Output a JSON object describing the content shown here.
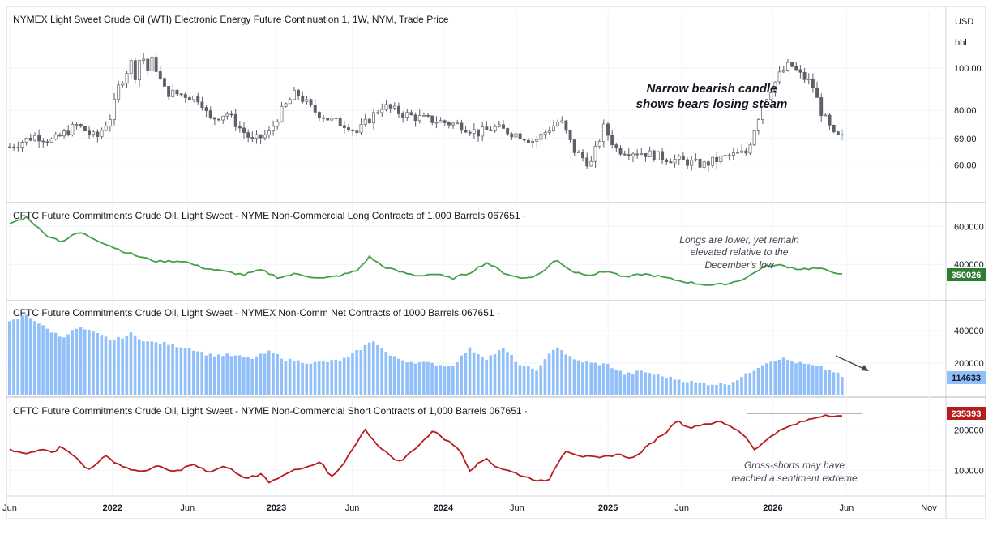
{
  "chart_data": [
    {
      "type": "candlestick",
      "title": "NYMEX Light Sweet Crude Oil (WTI) Electronic Energy Future Continuation 1, 1W, NYM, Trade Price",
      "y_unit": "USD",
      "y_unit2": "bbl",
      "y_scale": "log",
      "y_ticks": [
        60,
        69,
        80,
        100
      ],
      "y_tick_labels": [
        "60.00",
        "69.00",
        "80.00",
        "100.00"
      ],
      "ylim": [
        50,
        135
      ],
      "last_value": 69.0,
      "annotation": "Narrow bearish candle shows bears losing steam",
      "annotation_lines": [
        "Narrow bearish candle",
        "shows bears losing steam"
      ],
      "close_anchors": [
        [
          0,
          66
        ],
        [
          0.06,
          70
        ],
        [
          0.1,
          68
        ],
        [
          0.155,
          74
        ],
        [
          0.2,
          69
        ],
        [
          0.235,
          78
        ],
        [
          0.25,
          90
        ],
        [
          0.28,
          103
        ],
        [
          0.29,
          96
        ],
        [
          0.305,
          110
        ],
        [
          0.315,
          97
        ],
        [
          0.33,
          105
        ],
        [
          0.345,
          95
        ],
        [
          0.36,
          88
        ],
        [
          0.4,
          87
        ],
        [
          0.44,
          85
        ],
        [
          0.46,
          76
        ],
        [
          0.5,
          79
        ],
        [
          0.53,
          73
        ],
        [
          0.56,
          68
        ],
        [
          0.6,
          71
        ],
        [
          0.62,
          78
        ],
        [
          0.66,
          88
        ],
        [
          0.7,
          80
        ],
        [
          0.74,
          76
        ],
        [
          0.78,
          74
        ],
        [
          0.8,
          71
        ],
        [
          0.86,
          82
        ],
        [
          0.9,
          79
        ],
        [
          0.94,
          77
        ],
        [
          1.04,
          74
        ],
        [
          1.08,
          71
        ],
        [
          1.12,
          73
        ],
        [
          1.18,
          70
        ],
        [
          1.21,
          68
        ],
        [
          1.24,
          72
        ],
        [
          1.27,
          76
        ],
        [
          1.3,
          65
        ],
        [
          1.34,
          60
        ],
        [
          1.37,
          73
        ],
        [
          1.4,
          65
        ],
        [
          1.46,
          64
        ],
        [
          1.52,
          62
        ],
        [
          1.56,
          61
        ],
        [
          1.6,
          60
        ],
        [
          1.66,
          63
        ],
        [
          1.7,
          64
        ],
        [
          1.74,
          84
        ],
        [
          1.78,
          98
        ],
        [
          1.8,
          102
        ],
        [
          1.82,
          97
        ],
        [
          1.85,
          92
        ],
        [
          1.87,
          80
        ],
        [
          1.9,
          70
        ],
        [
          1.92,
          69
        ]
      ]
    },
    {
      "type": "line",
      "title": "CFTC Future Commitments Crude Oil, Light Sweet - NYME Non-Commercial Long Contracts of 1,000 Barrels 067651 ·",
      "y_ticks": [
        400000,
        600000
      ],
      "y_tick_labels": [
        "400000",
        "600000"
      ],
      "ylim": [
        230000,
        700000
      ],
      "last_value": 350026,
      "last_label": "350026",
      "color": "#43a047",
      "annotation": "Longs are lower, yet remain elevated relative to the December's low",
      "annotation_lines": [
        "Longs are lower, yet remain",
        "elevated relative to the",
        "December's low"
      ],
      "anchors": [
        [
          0,
          615000
        ],
        [
          0.04,
          650000
        ],
        [
          0.08,
          560000
        ],
        [
          0.12,
          520000
        ],
        [
          0.16,
          570000
        ],
        [
          0.2,
          530000
        ],
        [
          0.26,
          470000
        ],
        [
          0.3,
          440000
        ],
        [
          0.34,
          415000
        ],
        [
          0.4,
          418000
        ],
        [
          0.44,
          385000
        ],
        [
          0.5,
          360000
        ],
        [
          0.54,
          345000
        ],
        [
          0.58,
          370000
        ],
        [
          0.62,
          330000
        ],
        [
          0.66,
          350000
        ],
        [
          0.72,
          325000
        ],
        [
          0.76,
          340000
        ],
        [
          0.8,
          365000
        ],
        [
          0.83,
          440000
        ],
        [
          0.86,
          390000
        ],
        [
          0.9,
          360000
        ],
        [
          0.94,
          340000
        ],
        [
          0.98,
          350000
        ],
        [
          1.02,
          325000
        ],
        [
          1.06,
          355000
        ],
        [
          1.1,
          410000
        ],
        [
          1.14,
          355000
        ],
        [
          1.18,
          325000
        ],
        [
          1.22,
          345000
        ],
        [
          1.26,
          425000
        ],
        [
          1.3,
          360000
        ],
        [
          1.34,
          345000
        ],
        [
          1.38,
          365000
        ],
        [
          1.42,
          330000
        ],
        [
          1.46,
          350000
        ],
        [
          1.5,
          335000
        ],
        [
          1.54,
          315000
        ],
        [
          1.58,
          300000
        ],
        [
          1.62,
          290000
        ],
        [
          1.66,
          300000
        ],
        [
          1.7,
          330000
        ],
        [
          1.74,
          390000
        ],
        [
          1.78,
          395000
        ],
        [
          1.82,
          375000
        ],
        [
          1.86,
          380000
        ],
        [
          1.9,
          360000
        ],
        [
          1.92,
          350026
        ]
      ]
    },
    {
      "type": "bar",
      "title": "CFTC Future Commitments Crude Oil, Light Sweet - NYMEX Non-Comm Net Contracts of 1000 Barrels 067651 ·",
      "y_ticks": [
        200000,
        400000
      ],
      "y_tick_labels": [
        "200000",
        "400000"
      ],
      "ylim": [
        0,
        540000
      ],
      "last_value": 114633,
      "last_label": "114633",
      "color": "#90bff9",
      "anchors": [
        [
          0,
          450000
        ],
        [
          0.04,
          500000
        ],
        [
          0.08,
          420000
        ],
        [
          0.12,
          360000
        ],
        [
          0.16,
          420000
        ],
        [
          0.2,
          380000
        ],
        [
          0.24,
          340000
        ],
        [
          0.28,
          380000
        ],
        [
          0.32,
          330000
        ],
        [
          0.36,
          320000
        ],
        [
          0.42,
          290000
        ],
        [
          0.46,
          250000
        ],
        [
          0.5,
          250000
        ],
        [
          0.56,
          230000
        ],
        [
          0.6,
          270000
        ],
        [
          0.64,
          220000
        ],
        [
          0.7,
          200000
        ],
        [
          0.74,
          210000
        ],
        [
          0.78,
          230000
        ],
        [
          0.8,
          270000
        ],
        [
          0.84,
          340000
        ],
        [
          0.88,
          240000
        ],
        [
          0.92,
          210000
        ],
        [
          0.96,
          200000
        ],
        [
          1.02,
          180000
        ],
        [
          1.06,
          290000
        ],
        [
          1.1,
          230000
        ],
        [
          1.14,
          290000
        ],
        [
          1.18,
          180000
        ],
        [
          1.22,
          160000
        ],
        [
          1.26,
          310000
        ],
        [
          1.3,
          220000
        ],
        [
          1.34,
          200000
        ],
        [
          1.38,
          190000
        ],
        [
          1.42,
          130000
        ],
        [
          1.46,
          150000
        ],
        [
          1.5,
          120000
        ],
        [
          1.54,
          100000
        ],
        [
          1.58,
          80000
        ],
        [
          1.62,
          70000
        ],
        [
          1.66,
          75000
        ],
        [
          1.7,
          130000
        ],
        [
          1.74,
          200000
        ],
        [
          1.78,
          230000
        ],
        [
          1.82,
          200000
        ],
        [
          1.86,
          180000
        ],
        [
          1.9,
          150000
        ],
        [
          1.92,
          114633
        ]
      ]
    },
    {
      "type": "line",
      "title": "CFTC Future Commitments Crude Oil, Light Sweet - NYME Non-Commercial Short Contracts of 1,000 Barrels 067651 ·",
      "y_ticks": [
        100000,
        200000
      ],
      "y_tick_labels": [
        "100000",
        "200000"
      ],
      "ylim": [
        40000,
        270000
      ],
      "last_value": 235393,
      "last_label": "235393",
      "color": "#b71c1c",
      "annotation": "Gross-shorts may have reached a sentiment extreme",
      "annotation_lines": [
        "Gross-shorts may have",
        "reached a sentiment extreme"
      ],
      "anchors": [
        [
          0,
          150000
        ],
        [
          0.04,
          140000
        ],
        [
          0.08,
          155000
        ],
        [
          0.1,
          145000
        ],
        [
          0.12,
          160000
        ],
        [
          0.14,
          145000
        ],
        [
          0.18,
          100000
        ],
        [
          0.22,
          135000
        ],
        [
          0.26,
          110000
        ],
        [
          0.3,
          95000
        ],
        [
          0.34,
          110000
        ],
        [
          0.38,
          95000
        ],
        [
          0.42,
          115000
        ],
        [
          0.46,
          95000
        ],
        [
          0.5,
          110000
        ],
        [
          0.54,
          80000
        ],
        [
          0.58,
          90000
        ],
        [
          0.6,
          70000
        ],
        [
          0.64,
          95000
        ],
        [
          0.68,
          105000
        ],
        [
          0.72,
          120000
        ],
        [
          0.74,
          80000
        ],
        [
          0.76,
          100000
        ],
        [
          0.8,
          170000
        ],
        [
          0.82,
          200000
        ],
        [
          0.86,
          150000
        ],
        [
          0.9,
          120000
        ],
        [
          0.94,
          160000
        ],
        [
          0.98,
          200000
        ],
        [
          1.0,
          180000
        ],
        [
          1.04,
          150000
        ],
        [
          1.06,
          100000
        ],
        [
          1.1,
          130000
        ],
        [
          1.12,
          110000
        ],
        [
          1.16,
          95000
        ],
        [
          1.2,
          80000
        ],
        [
          1.24,
          70000
        ],
        [
          1.28,
          150000
        ],
        [
          1.32,
          135000
        ],
        [
          1.36,
          130000
        ],
        [
          1.4,
          140000
        ],
        [
          1.44,
          130000
        ],
        [
          1.46,
          150000
        ],
        [
          1.5,
          185000
        ],
        [
          1.52,
          200000
        ],
        [
          1.54,
          230000
        ],
        [
          1.56,
          205000
        ],
        [
          1.6,
          215000
        ],
        [
          1.64,
          220000
        ],
        [
          1.68,
          200000
        ],
        [
          1.7,
          180000
        ],
        [
          1.72,
          150000
        ],
        [
          1.76,
          190000
        ],
        [
          1.8,
          210000
        ],
        [
          1.84,
          225000
        ],
        [
          1.88,
          238000
        ],
        [
          1.92,
          235393
        ]
      ]
    }
  ],
  "x_axis": {
    "labels": [
      {
        "text": "Jun",
        "year": false
      },
      {
        "text": "2022",
        "year": true
      },
      {
        "text": "Jun",
        "year": false
      },
      {
        "text": "2023",
        "year": true
      },
      {
        "text": "Jun",
        "year": false
      },
      {
        "text": "2024",
        "year": true
      },
      {
        "text": "Jun",
        "year": false
      },
      {
        "text": "2025",
        "year": true
      },
      {
        "text": "Jun",
        "year": false
      },
      {
        "text": "2026",
        "year": true
      },
      {
        "text": "Jun",
        "year": false
      },
      {
        "text": "Nov",
        "year": false
      }
    ],
    "label_t": [
      0.0,
      0.237,
      0.41,
      0.615,
      0.79,
      1.0,
      1.17,
      1.38,
      1.55,
      1.76,
      1.93,
      2.12
    ]
  },
  "colors": {
    "candle": "#5d6068",
    "last_candle": "#90a4f0",
    "long_line": "#43a047",
    "net_bar": "#90bff9",
    "short_line": "#b71c1c",
    "grid": "#f0f3fa",
    "border": "#d1d4dc"
  }
}
